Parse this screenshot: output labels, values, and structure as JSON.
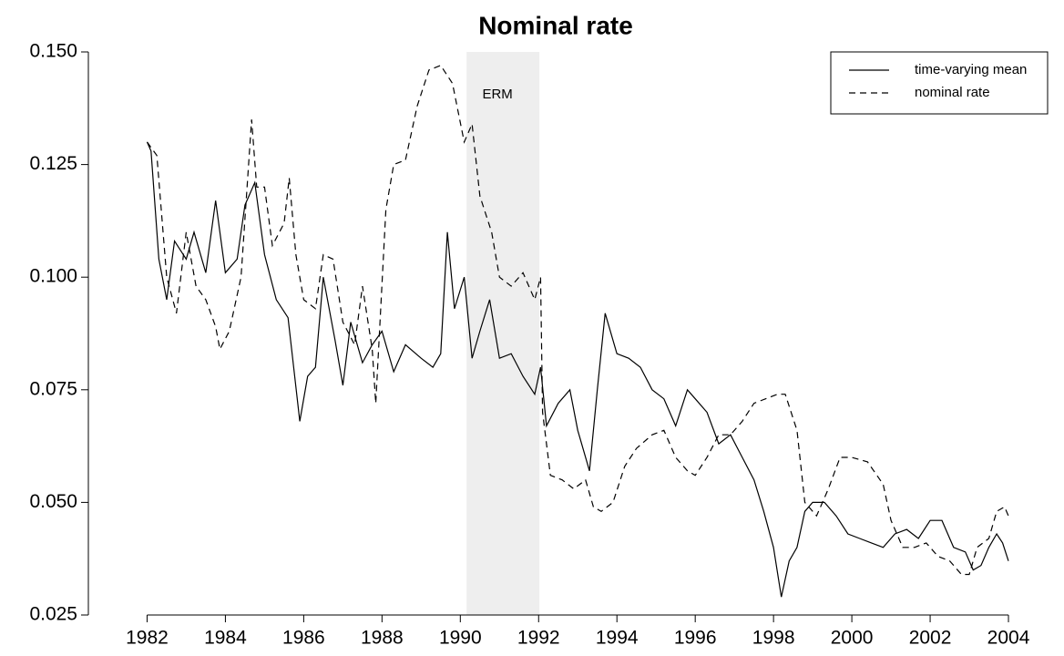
{
  "chart_data": {
    "type": "line",
    "title": "Nominal rate",
    "xlim": [
      1980.5,
      2005
    ],
    "ylim": [
      0.025,
      0.15
    ],
    "xticks": [
      1982,
      1984,
      1986,
      1988,
      1990,
      1992,
      1994,
      1996,
      1998,
      2000,
      2002,
      2004
    ],
    "yticks": [
      {
        "value": 0.025,
        "label": "0.025"
      },
      {
        "value": 0.05,
        "label": "0.050"
      },
      {
        "value": 0.075,
        "label": "0.075"
      },
      {
        "value": 0.1,
        "label": "0.100"
      },
      {
        "value": 0.125,
        "label": "0.125"
      },
      {
        "value": 0.15,
        "label": "0.150"
      }
    ],
    "shade": {
      "x": [
        1990.16,
        1992.02
      ],
      "label": "ERM",
      "color": "#eeeeee"
    },
    "legend": "top-right",
    "series": [
      {
        "name": "time-varying mean",
        "color": "#000000",
        "linestyle": "solid",
        "x": [
          1982,
          1982.1,
          1982.3,
          1982.5,
          1982.7,
          1983,
          1983.2,
          1983.5,
          1983.75,
          1984,
          1984.3,
          1984.5,
          1984.75,
          1985,
          1985.3,
          1985.6,
          1985.9,
          1986.1,
          1986.3,
          1986.5,
          1986.8,
          1987,
          1987.2,
          1987.5,
          1987.75,
          1988,
          1988.3,
          1988.6,
          1989,
          1989.3,
          1989.5,
          1989.67,
          1989.85,
          1990.1,
          1990.3,
          1990.5,
          1990.75,
          1991,
          1991.3,
          1991.6,
          1991.9,
          1992.05,
          1992.2,
          1992.5,
          1992.8,
          1993,
          1993.3,
          1993.5,
          1993.7,
          1994,
          1994.3,
          1994.6,
          1994.9,
          1995.2,
          1995.5,
          1995.8,
          1996,
          1996.3,
          1996.6,
          1996.9,
          1997.2,
          1997.5,
          1997.75,
          1998,
          1998.2,
          1998.4,
          1998.6,
          1998.8,
          1999,
          1999.3,
          1999.6,
          1999.9,
          2000.2,
          2000.5,
          2000.8,
          2001.1,
          2001.4,
          2001.7,
          2002,
          2002.3,
          2002.6,
          2002.9,
          2003.1,
          2003.3,
          2003.5,
          2003.7,
          2003.85,
          2004
        ],
        "values": [
          0.13,
          0.128,
          0.104,
          0.095,
          0.108,
          0.104,
          0.11,
          0.101,
          0.117,
          0.101,
          0.104,
          0.116,
          0.121,
          0.105,
          0.095,
          0.091,
          0.068,
          0.078,
          0.08,
          0.1,
          0.086,
          0.076,
          0.09,
          0.081,
          0.085,
          0.088,
          0.079,
          0.085,
          0.082,
          0.08,
          0.083,
          0.11,
          0.093,
          0.1,
          0.082,
          0.088,
          0.095,
          0.082,
          0.083,
          0.078,
          0.074,
          0.08,
          0.067,
          0.072,
          0.075,
          0.066,
          0.057,
          0.075,
          0.092,
          0.083,
          0.082,
          0.08,
          0.075,
          0.073,
          0.067,
          0.075,
          0.073,
          0.07,
          0.063,
          0.065,
          0.06,
          0.055,
          0.048,
          0.04,
          0.029,
          0.037,
          0.04,
          0.048,
          0.05,
          0.05,
          0.047,
          0.043,
          0.042,
          0.041,
          0.04,
          0.043,
          0.044,
          0.042,
          0.046,
          0.046,
          0.04,
          0.039,
          0.035,
          0.036,
          0.04,
          0.043,
          0.041,
          0.037
        ]
      },
      {
        "name": "nominal rate",
        "color": "#000000",
        "linestyle": "dashed",
        "x": [
          1982,
          1982.25,
          1982.5,
          1982.75,
          1983,
          1983.25,
          1983.5,
          1983.75,
          1983.86,
          1984.1,
          1984.4,
          1984.67,
          1984.8,
          1985,
          1985.2,
          1985.5,
          1985.63,
          1985.8,
          1986,
          1986.3,
          1986.5,
          1986.75,
          1987,
          1987.3,
          1987.5,
          1987.75,
          1987.84,
          1988.1,
          1988.3,
          1988.6,
          1988.9,
          1989.2,
          1989.5,
          1989.8,
          1990.1,
          1990.3,
          1990.5,
          1990.8,
          1991,
          1991.3,
          1991.6,
          1991.9,
          1992.05,
          1992.1,
          1992.3,
          1992.6,
          1992.9,
          1993.2,
          1993.4,
          1993.6,
          1993.9,
          1994.2,
          1994.5,
          1994.9,
          1995.2,
          1995.5,
          1995.8,
          1996,
          1996.3,
          1996.6,
          1996.9,
          1997.2,
          1997.5,
          1997.8,
          1998.1,
          1998.3,
          1998.6,
          1998.8,
          1999.1,
          1999.4,
          1999.7,
          2000,
          2000.4,
          2000.8,
          2001,
          2001.3,
          2001.6,
          2001.9,
          2002.2,
          2002.5,
          2002.8,
          2003,
          2003.2,
          2003.5,
          2003.7,
          2003.9,
          2004
        ],
        "values": [
          0.13,
          0.127,
          0.1,
          0.092,
          0.11,
          0.098,
          0.095,
          0.089,
          0.084,
          0.088,
          0.1,
          0.135,
          0.12,
          0.12,
          0.107,
          0.112,
          0.122,
          0.105,
          0.095,
          0.093,
          0.105,
          0.104,
          0.09,
          0.085,
          0.098,
          0.084,
          0.072,
          0.115,
          0.125,
          0.126,
          0.138,
          0.146,
          0.147,
          0.143,
          0.13,
          0.134,
          0.118,
          0.11,
          0.1,
          0.098,
          0.101,
          0.095,
          0.1,
          0.07,
          0.056,
          0.055,
          0.053,
          0.055,
          0.049,
          0.048,
          0.05,
          0.058,
          0.062,
          0.065,
          0.066,
          0.06,
          0.057,
          0.056,
          0.06,
          0.065,
          0.065,
          0.068,
          0.072,
          0.073,
          0.074,
          0.074,
          0.066,
          0.05,
          0.047,
          0.053,
          0.06,
          0.06,
          0.059,
          0.054,
          0.046,
          0.04,
          0.04,
          0.041,
          0.038,
          0.037,
          0.034,
          0.034,
          0.04,
          0.042,
          0.048,
          0.049,
          0.047
        ]
      }
    ]
  }
}
